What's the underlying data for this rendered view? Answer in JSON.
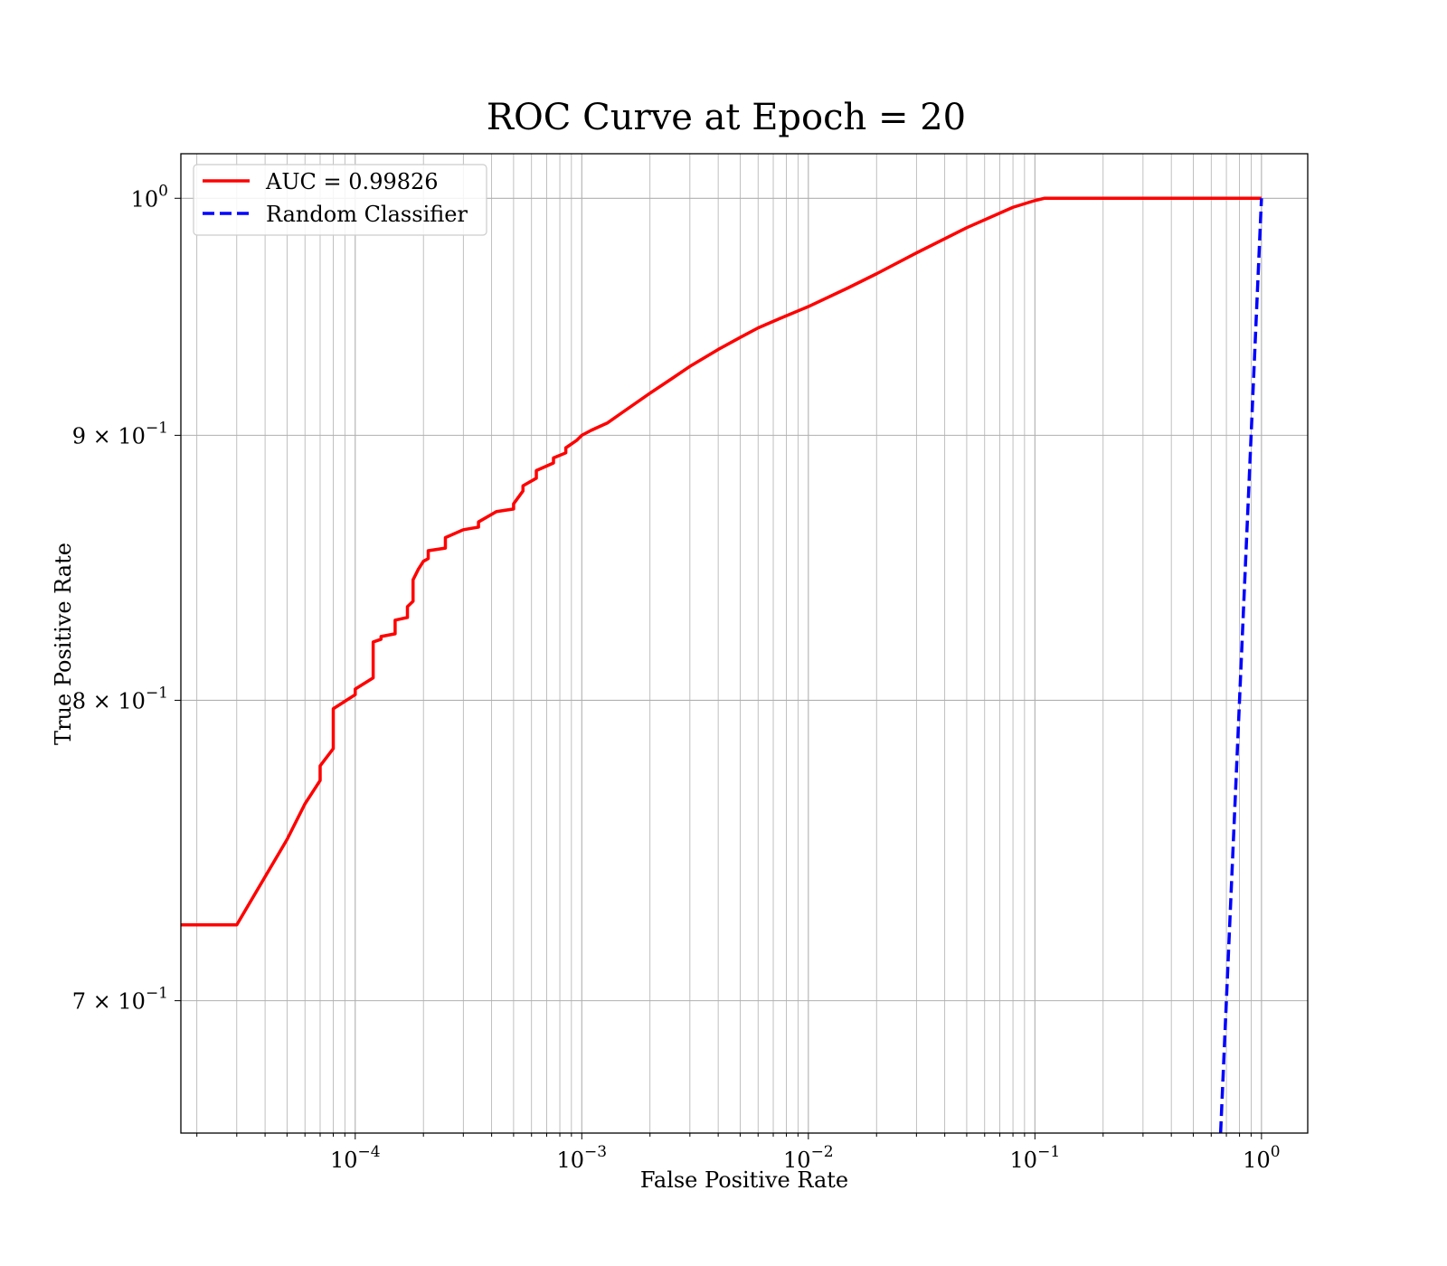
{
  "chart_data": {
    "type": "line",
    "title": "ROC Curve at Epoch = 20",
    "xlabel": "False Positive Rate",
    "ylabel": "True Positive Rate",
    "xscale": "log",
    "yscale": "log",
    "xlim": [
      1.7e-05,
      1.6
    ],
    "ylim": [
      0.66,
      1.02
    ],
    "grid": "on (major and minor)",
    "legend_position": "top-left",
    "x_ticks": [
      {
        "value": 0.0001,
        "base": "10",
        "exp": "−4"
      },
      {
        "value": 0.001,
        "base": "10",
        "exp": "−3"
      },
      {
        "value": 0.01,
        "base": "10",
        "exp": "−2"
      },
      {
        "value": 0.1,
        "base": "10",
        "exp": "−1"
      },
      {
        "value": 1,
        "base": "10",
        "exp": "0"
      }
    ],
    "y_ticks": [
      {
        "value": 1.0,
        "mantissa": "",
        "base": "10",
        "exp": "0"
      },
      {
        "value": 0.9,
        "mantissa": "9 × ",
        "base": "10",
        "exp": "−1"
      },
      {
        "value": 0.8,
        "mantissa": "8 × ",
        "base": "10",
        "exp": "−1"
      },
      {
        "value": 0.7,
        "mantissa": "7 × ",
        "base": "10",
        "exp": "−1"
      }
    ],
    "series": [
      {
        "name": "AUC = 0.99826",
        "color": "#ff0000",
        "style": "solid",
        "x": [
          1.7e-05,
          3e-05,
          5e-05,
          6e-05,
          7e-05,
          7e-05,
          8e-05,
          8e-05,
          0.0001,
          0.0001,
          0.00012,
          0.00012,
          0.00013,
          0.00013,
          0.00015,
          0.00015,
          0.00017,
          0.00017,
          0.00018,
          0.00018,
          0.00019,
          0.0002,
          0.00021,
          0.00021,
          0.00025,
          0.00025,
          0.0003,
          0.00035,
          0.00035,
          0.00042,
          0.0005,
          0.0005,
          0.00055,
          0.00055,
          0.00063,
          0.00063,
          0.00075,
          0.00075,
          0.00085,
          0.00085,
          0.00095,
          0.001,
          0.0011,
          0.0013,
          0.0015,
          0.002,
          0.0025,
          0.003,
          0.004,
          0.005,
          0.006,
          0.0075,
          0.01,
          0.015,
          0.02,
          0.03,
          0.05,
          0.08,
          0.1,
          0.11,
          0.2,
          0.5,
          1.0
        ],
        "y": [
          0.724,
          0.724,
          0.752,
          0.764,
          0.772,
          0.777,
          0.783,
          0.797,
          0.802,
          0.804,
          0.808,
          0.821,
          0.822,
          0.823,
          0.824,
          0.829,
          0.83,
          0.834,
          0.836,
          0.844,
          0.848,
          0.851,
          0.852,
          0.855,
          0.856,
          0.86,
          0.863,
          0.864,
          0.866,
          0.87,
          0.871,
          0.873,
          0.878,
          0.88,
          0.883,
          0.886,
          0.889,
          0.891,
          0.893,
          0.895,
          0.898,
          0.9,
          0.902,
          0.905,
          0.909,
          0.917,
          0.923,
          0.928,
          0.935,
          0.94,
          0.944,
          0.948,
          0.953,
          0.961,
          0.967,
          0.976,
          0.987,
          0.996,
          0.999,
          1.0,
          1.0,
          1.0,
          1.0
        ]
      },
      {
        "name": "Random Classifier",
        "color": "#0000ff",
        "style": "dashed",
        "x": [
          0.66,
          1.0
        ],
        "y": [
          0.66,
          1.0
        ]
      }
    ]
  }
}
